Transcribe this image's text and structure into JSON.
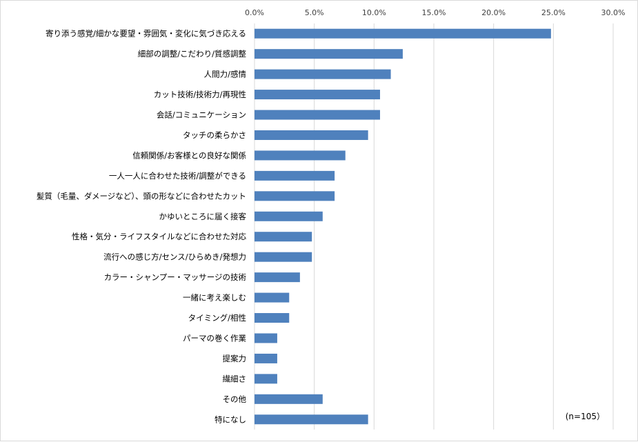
{
  "chart_data": {
    "type": "bar",
    "orientation": "horizontal",
    "x_axis_position": "top",
    "categories": [
      "寄り添う感覚/細かな要望・雰囲気・変化に気づき応える",
      "細部の調整/こだわり/質感調整",
      "人間力/感情",
      "カット技術/技術力/再現性",
      "会話/コミュニケーション",
      "タッチの柔らかさ",
      "信頼関係/お客様との良好な関係",
      "一人一人に合わせた技術/調整ができる",
      "髪質（毛量、ダメージなど）、頭の形などに合わせたカット",
      "かゆいところに届く接客",
      "性格・気分・ライフスタイルなどに合わせた対応",
      "流行への感じ方/センス/ひらめき/発想力",
      "カラー・シャンプー・マッサージの技術",
      "一緒に考え楽しむ",
      "タイミング/相性",
      "パーマの巻く作業",
      "提案力",
      "繊細さ",
      "その他",
      "特になし"
    ],
    "values": [
      24.8,
      12.4,
      11.4,
      10.5,
      10.5,
      9.5,
      7.6,
      6.7,
      6.7,
      5.7,
      4.8,
      4.8,
      3.8,
      2.9,
      2.9,
      1.9,
      1.9,
      1.9,
      5.7,
      9.5
    ],
    "xlim": [
      0,
      30
    ],
    "ticks": [
      "0.0%",
      "5.0%",
      "10.0%",
      "15.0%",
      "20.0%",
      "25.0%",
      "30.0%"
    ],
    "tick_values": [
      0,
      5,
      10,
      15,
      20,
      25,
      30
    ],
    "grid": true,
    "bar_color": "#4f81bd",
    "grid_color": "#d9d9d9",
    "annotation": "(n=105）"
  }
}
